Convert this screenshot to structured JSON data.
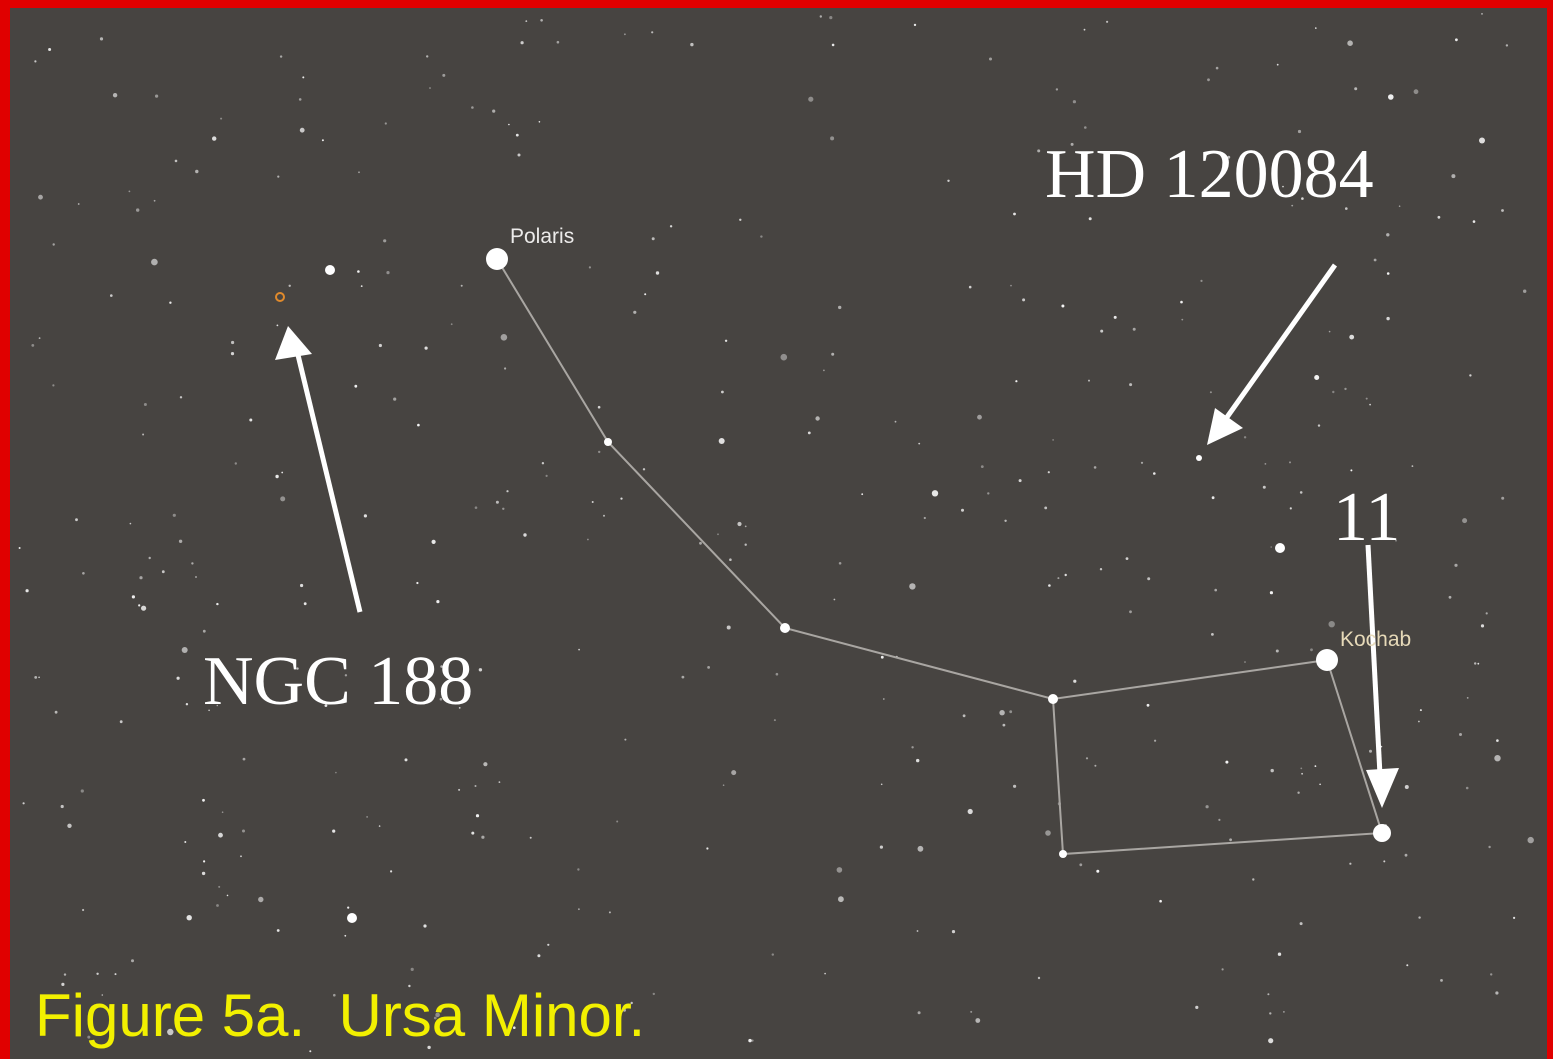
{
  "figure": {
    "caption": "Figure 5a.  Ursa Minor.",
    "star_labels": {
      "polaris": "Polaris",
      "kochab": "Kochab"
    },
    "annotations": {
      "hd": "HD 120084",
      "eleven": "11",
      "ngc": "NGC 188"
    }
  }
}
